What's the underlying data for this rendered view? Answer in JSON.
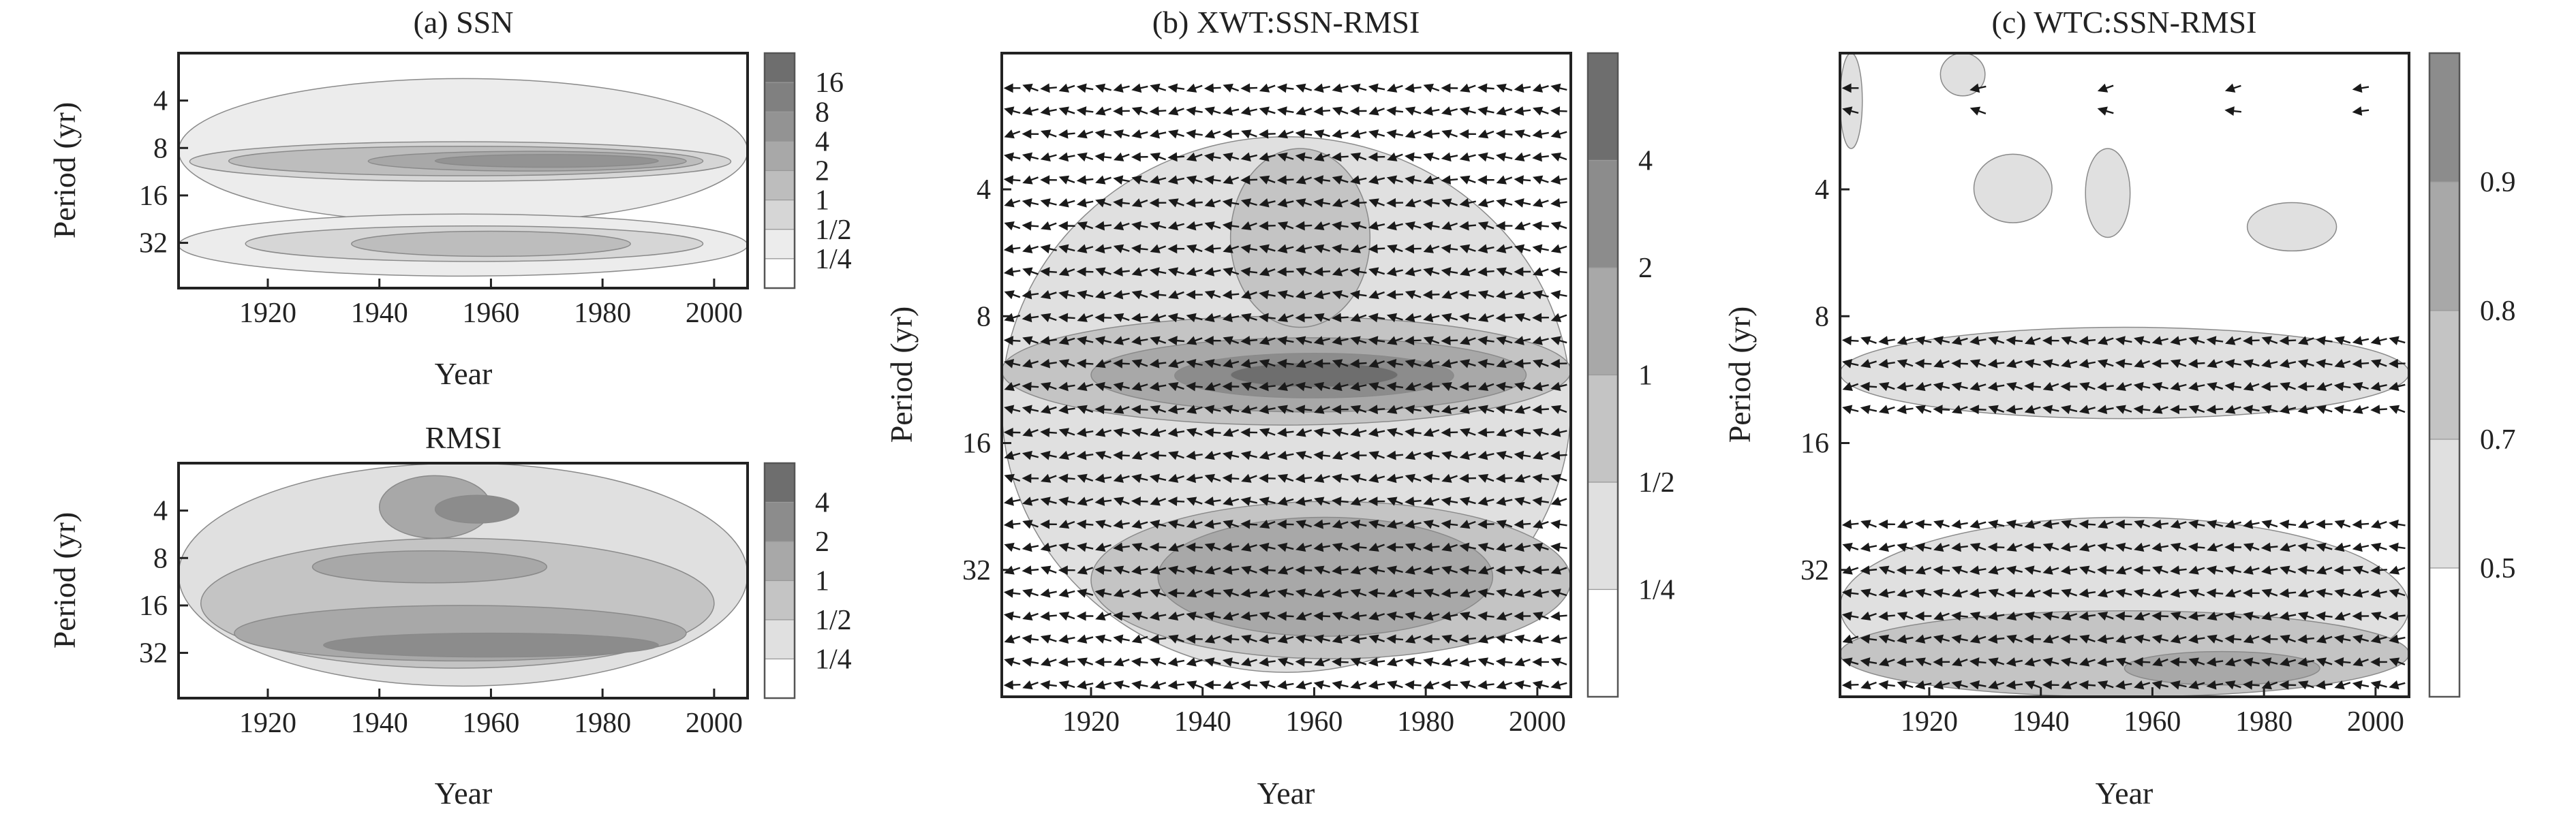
{
  "chart_data": [
    {
      "type": "heatmap",
      "id": "ssn",
      "title": "(a) SSN",
      "xlabel": "Year",
      "ylabel": "Period (yr)",
      "xlim": [
        1904,
        2006
      ],
      "xticks": [
        1920,
        1940,
        1960,
        1980,
        2000
      ],
      "ylim": [
        2,
        62
      ],
      "yscale": "log2",
      "yticks": [
        4,
        8,
        16,
        32
      ],
      "colorbar": {
        "labels": [
          "16",
          "8",
          "4",
          "2",
          "1",
          "1/2",
          "1/4"
        ],
        "colors": [
          "#6e6e6e",
          "#808080",
          "#939393",
          "#a8a8a8",
          "#bdbdbd",
          "#d6d6d6",
          "#ececec",
          "#ffffff"
        ]
      },
      "regions": [
        {
          "x": [
            1904,
            2006
          ],
          "y": [
            2.9,
            24
          ],
          "level": 1
        },
        {
          "x": [
            1904,
            2006
          ],
          "y": [
            21,
            52
          ],
          "level": 1
        },
        {
          "x": [
            1906,
            2003
          ],
          "y": [
            7.3,
            13
          ],
          "level": 2
        },
        {
          "x": [
            1913,
            1998
          ],
          "y": [
            7.8,
            12
          ],
          "level": 3
        },
        {
          "x": [
            1938,
            1995
          ],
          "y": [
            8.4,
            11.2
          ],
          "level": 4
        },
        {
          "x": [
            1950,
            1990
          ],
          "y": [
            8.8,
            10.6
          ],
          "level": 5
        },
        {
          "x": [
            1916,
            1998
          ],
          "y": [
            25,
            42
          ],
          "level": 2
        },
        {
          "x": [
            1935,
            1985
          ],
          "y": [
            27,
            39
          ],
          "level": 3
        }
      ]
    },
    {
      "type": "heatmap",
      "id": "rmsi",
      "title": "RMSI",
      "xlabel": "Year",
      "ylabel": "Period (yr)",
      "xlim": [
        1904,
        2006
      ],
      "xticks": [
        1920,
        1940,
        1960,
        1980,
        2000
      ],
      "ylim": [
        2,
        62
      ],
      "yscale": "log2",
      "yticks": [
        4,
        8,
        16,
        32
      ],
      "colorbar": {
        "labels": [
          "4",
          "2",
          "1",
          "1/2",
          "1/4"
        ],
        "colors": [
          "#6e6e6e",
          "#8c8c8c",
          "#a8a8a8",
          "#c4c4c4",
          "#e0e0e0",
          "#ffffff"
        ]
      },
      "regions": [
        {
          "x": [
            1904,
            2006
          ],
          "y": [
            2,
            52
          ],
          "level": 1
        },
        {
          "x": [
            1908,
            2000
          ],
          "y": [
            6,
            40
          ],
          "level": 2
        },
        {
          "x": [
            1914,
            1995
          ],
          "y": [
            16,
            36
          ],
          "level": 3
        },
        {
          "x": [
            1930,
            1990
          ],
          "y": [
            24,
            34
          ],
          "level": 4
        },
        {
          "x": [
            1928,
            1970
          ],
          "y": [
            7.2,
            11.5
          ],
          "level": 3
        },
        {
          "x": [
            1940,
            1960
          ],
          "y": [
            2.4,
            6
          ],
          "level": 3
        },
        {
          "x": [
            1950,
            1965
          ],
          "y": [
            3.2,
            4.8
          ],
          "level": 4
        }
      ]
    },
    {
      "type": "heatmap",
      "id": "xwt",
      "title": "(b) XWT:SSN-RMSI",
      "xlabel": "Year",
      "ylabel": "Period (yr)",
      "xlim": [
        1904,
        2006
      ],
      "xticks": [
        1920,
        1940,
        1960,
        1980,
        2000
      ],
      "ylim": [
        1.9,
        64
      ],
      "yscale": "log2",
      "yticks": [
        4,
        8,
        16,
        32
      ],
      "colorbar": {
        "labels": [
          "4",
          "2",
          "1",
          "1/2",
          "1/4"
        ],
        "colors": [
          "#6e6e6e",
          "#8c8c8c",
          "#a8a8a8",
          "#c4c4c4",
          "#e0e0e0",
          "#ffffff"
        ]
      },
      "regions": [
        {
          "x": [
            1904,
            2006
          ],
          "y": [
            3,
            56
          ],
          "level": 1
        },
        {
          "x": [
            1904,
            2006
          ],
          "y": [
            8,
            14.5
          ],
          "level": 2
        },
        {
          "x": [
            1920,
            1998
          ],
          "y": [
            9,
            13.5
          ],
          "level": 3
        },
        {
          "x": [
            1935,
            1985
          ],
          "y": [
            9.8,
            12.5
          ],
          "level": 4
        },
        {
          "x": [
            1945,
            1975
          ],
          "y": [
            10.3,
            11.8
          ],
          "level": 5
        },
        {
          "x": [
            1945,
            1970
          ],
          "y": [
            3.2,
            8.5
          ],
          "level": 2
        },
        {
          "x": [
            1920,
            2006
          ],
          "y": [
            22,
            52
          ],
          "level": 2
        },
        {
          "x": [
            1932,
            1992
          ],
          "y": [
            24,
            46
          ],
          "level": 3
        }
      ],
      "arrows": {
        "x": [
          1906,
          2004
        ],
        "y": [
          2.3,
          60
        ],
        "nx": 31,
        "ny": 27
      }
    },
    {
      "type": "heatmap",
      "id": "wtc",
      "title": "(c) WTC:SSN-RMSI",
      "xlabel": "Year",
      "ylabel": "Period (yr)",
      "xlim": [
        1904,
        2006
      ],
      "xticks": [
        1920,
        1940,
        1960,
        1980,
        2000
      ],
      "ylim": [
        1.9,
        64
      ],
      "yscale": "log2",
      "yticks": [
        4,
        8,
        16,
        32
      ],
      "colorbar": {
        "labels": [
          "0.9",
          "0.8",
          "0.7",
          "0.5"
        ],
        "colors": [
          "#8c8c8c",
          "#a8a8a8",
          "#c4c4c4",
          "#e0e0e0",
          "#ffffff"
        ]
      },
      "regions": [
        {
          "x": [
            1904,
            2006
          ],
          "y": [
            8.5,
            14
          ],
          "level": 1
        },
        {
          "x": [
            1904,
            2006
          ],
          "y": [
            24,
            64
          ],
          "level": 1
        },
        {
          "x": [
            1904,
            2006
          ],
          "y": [
            40,
            64
          ],
          "level": 2
        },
        {
          "x": [
            1955,
            1990
          ],
          "y": [
            50,
            60
          ],
          "level": 3
        },
        {
          "x": [
            1928,
            1942
          ],
          "y": [
            3.3,
            4.8
          ],
          "level": 1
        },
        {
          "x": [
            1948,
            1956
          ],
          "y": [
            3.2,
            5.2
          ],
          "level": 1
        },
        {
          "x": [
            1977,
            1993
          ],
          "y": [
            4.3,
            5.6
          ],
          "level": 1
        },
        {
          "x": [
            1904,
            1908
          ],
          "y": [
            1.9,
            3.2
          ],
          "level": 1
        },
        {
          "x": [
            1922,
            1930
          ],
          "y": [
            1.9,
            2.4
          ],
          "level": 1
        }
      ],
      "arrows": {
        "x": [
          1906,
          2004
        ],
        "y": [
          2.3,
          60
        ],
        "nx": 31,
        "ny": 27
      }
    }
  ]
}
